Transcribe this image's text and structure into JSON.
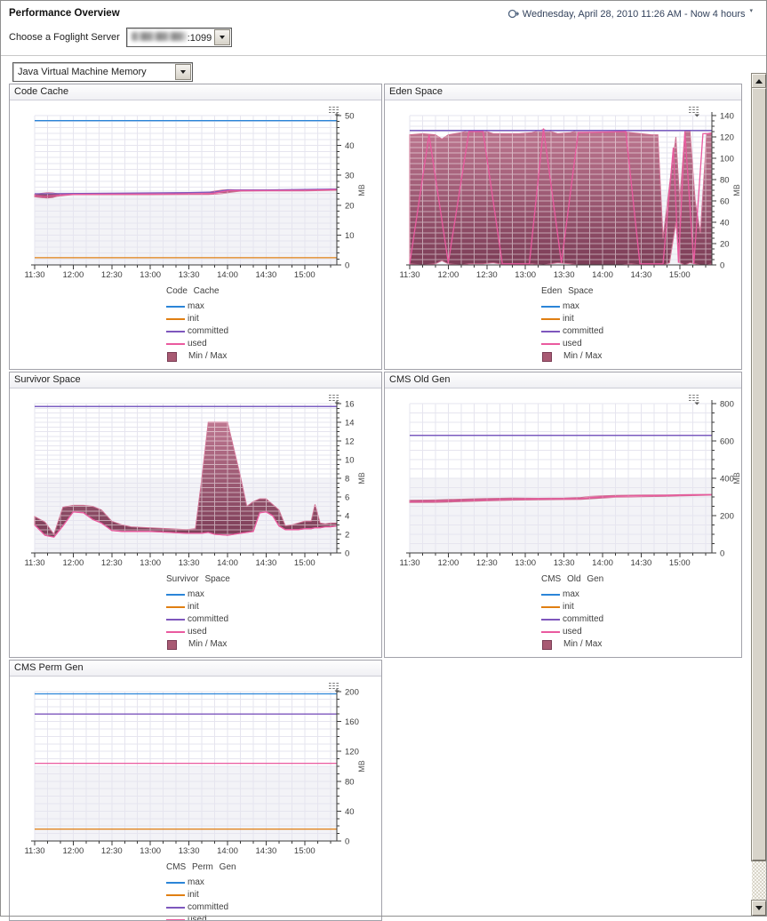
{
  "header": {
    "title": "Performance Overview",
    "timerange": "Wednesday, April 28, 2010 11:26 AM - Now 4 hours",
    "server_label": "Choose a Foglight Server",
    "server_value_visible": ":1099",
    "metric_selector": "Java Virtual Machine Memory"
  },
  "legend_labels": {
    "max": "max",
    "init": "init",
    "committed": "committed",
    "used": "used",
    "minmax": "Min / Max"
  },
  "colors": {
    "max": "#2b85d8",
    "init": "#e07f12",
    "committed": "#7e57bd",
    "used": "#ea5a9f",
    "band_top": "#bd7790",
    "band_bottom": "#7c3d57",
    "band_swatch": "#a85a73",
    "grid": "#e6e5ef",
    "axis": "#3a3a3a",
    "plot_lower_bg": "#f3f3f7"
  },
  "xticklabels": [
    "11:30",
    "12:00",
    "12:30",
    "13:00",
    "13:30",
    "14:00",
    "14:30",
    "15:00"
  ],
  "charts": [
    {
      "title": "Code Cache",
      "unit": "MB",
      "type": "line+band",
      "xlim": [
        0,
        235
      ],
      "xminor": 10,
      "xmajor": 30,
      "ylim": [
        0,
        50
      ],
      "ymajor": 10,
      "yminor": 2,
      "series": {
        "max": [
          [
            0,
            48.3
          ],
          [
            235,
            48.3
          ]
        ],
        "init": [
          [
            0,
            2.4
          ],
          [
            235,
            2.4
          ]
        ],
        "committed": [
          [
            0,
            23.8
          ],
          [
            60,
            24.0
          ],
          [
            120,
            24.2
          ],
          [
            140,
            24.4
          ],
          [
            150,
            25.1
          ],
          [
            180,
            25.1
          ],
          [
            235,
            25.4
          ]
        ],
        "used": [
          [
            0,
            23.2
          ],
          [
            8,
            22.9
          ],
          [
            14,
            23.1
          ],
          [
            20,
            23.4
          ],
          [
            30,
            23.6
          ],
          [
            60,
            23.7
          ],
          [
            90,
            23.7
          ],
          [
            120,
            23.8
          ],
          [
            138,
            23.9
          ],
          [
            146,
            24.5
          ],
          [
            152,
            24.9
          ],
          [
            180,
            24.9
          ],
          [
            210,
            25.0
          ],
          [
            235,
            25.2
          ]
        ]
      },
      "band": {
        "t": [
          0,
          6,
          10,
          14,
          18,
          24,
          30,
          60,
          90,
          120,
          135,
          140,
          146,
          152,
          160,
          180,
          210,
          235
        ],
        "max": [
          23.6,
          24.0,
          24.2,
          24.1,
          23.8,
          23.8,
          23.9,
          23.9,
          23.9,
          24.1,
          24.3,
          24.7,
          25.1,
          25.2,
          25.1,
          25.1,
          25.1,
          25.4
        ],
        "min": [
          22.8,
          22.5,
          22.4,
          22.6,
          23.0,
          23.3,
          23.5,
          23.5,
          23.5,
          23.6,
          23.6,
          23.7,
          23.9,
          24.3,
          24.7,
          24.8,
          24.8,
          25.0
        ]
      }
    },
    {
      "title": "Eden Space",
      "unit": "MB",
      "type": "line+band",
      "xlim": [
        0,
        235
      ],
      "xminor": 10,
      "xmajor": 30,
      "ylim": [
        0,
        140
      ],
      "ymajor": 20,
      "yminor": 5,
      "series": {
        "max": [
          [
            0,
            126
          ],
          [
            235,
            126
          ]
        ],
        "init": null,
        "committed": [
          [
            0,
            126
          ],
          [
            235,
            126
          ]
        ],
        "used": [
          [
            0,
            1
          ],
          [
            15,
            122
          ],
          [
            30,
            2
          ],
          [
            46,
            125
          ],
          [
            57,
            125
          ],
          [
            72,
            1
          ],
          [
            93,
            1
          ],
          [
            104,
            128
          ],
          [
            118,
            2
          ],
          [
            131,
            124
          ],
          [
            168,
            125
          ],
          [
            179,
            1
          ],
          [
            197,
            1
          ],
          [
            205,
            110
          ],
          [
            209,
            2
          ],
          [
            214,
            125
          ],
          [
            221,
            1
          ],
          [
            228,
            123
          ],
          [
            235,
            123
          ]
        ]
      },
      "band": {
        "t": [
          0,
          10,
          20,
          25,
          30,
          40,
          46,
          57,
          65,
          75,
          85,
          95,
          104,
          115,
          125,
          131,
          150,
          165,
          172,
          180,
          188,
          193,
          197,
          202,
          207,
          210,
          214,
          218,
          222,
          226,
          231,
          235
        ],
        "max": [
          122,
          123,
          122,
          118,
          122,
          124,
          126,
          126,
          123,
          123,
          123,
          124,
          127,
          123,
          124,
          126,
          126,
          125,
          124,
          123,
          122,
          122,
          25,
          75,
          120,
          60,
          125,
          125,
          60,
          30,
          123,
          124
        ],
        "min": [
          1,
          0,
          1,
          4,
          1,
          0,
          1,
          1,
          2,
          0,
          0,
          1,
          0,
          2,
          1,
          0,
          0,
          0,
          1,
          0,
          0,
          0,
          0,
          2,
          40,
          2,
          0,
          2,
          1,
          0,
          0,
          1
        ]
      }
    },
    {
      "title": "Survivor Space",
      "unit": "MB",
      "type": "line+band",
      "xlim": [
        0,
        235
      ],
      "xminor": 10,
      "xmajor": 30,
      "ylim": [
        0,
        16
      ],
      "ymajor": 2,
      "yminor": 0.5,
      "series": {
        "max": [
          [
            0,
            15.7
          ],
          [
            235,
            15.7
          ]
        ],
        "init": null,
        "committed": [
          [
            0,
            15.7
          ],
          [
            235,
            15.7
          ]
        ],
        "used": [
          [
            0,
            3.0
          ],
          [
            8,
            1.9
          ],
          [
            15,
            1.7
          ],
          [
            22,
            2.9
          ],
          [
            30,
            4.4
          ],
          [
            38,
            4.3
          ],
          [
            45,
            3.6
          ],
          [
            52,
            3.2
          ],
          [
            60,
            2.4
          ],
          [
            68,
            2.3
          ],
          [
            75,
            2.3
          ],
          [
            90,
            2.3
          ],
          [
            105,
            2.2
          ],
          [
            118,
            2.1
          ],
          [
            125,
            2.1
          ],
          [
            130,
            2.1
          ],
          [
            135,
            2.2
          ],
          [
            140,
            2.0
          ],
          [
            150,
            1.9
          ],
          [
            160,
            2.1
          ],
          [
            165,
            2.2
          ],
          [
            170,
            2.3
          ],
          [
            175,
            4.3
          ],
          [
            180,
            4.4
          ],
          [
            185,
            4.0
          ],
          [
            190,
            2.9
          ],
          [
            195,
            2.5
          ],
          [
            200,
            2.5
          ],
          [
            205,
            2.5
          ],
          [
            210,
            2.6
          ],
          [
            215,
            2.6
          ],
          [
            218,
            2.7
          ],
          [
            222,
            2.7
          ],
          [
            226,
            2.8
          ],
          [
            230,
            2.8
          ],
          [
            235,
            2.9
          ]
        ]
      },
      "band": {
        "t": [
          0,
          8,
          15,
          22,
          30,
          38,
          45,
          52,
          60,
          68,
          75,
          90,
          105,
          118,
          125,
          130,
          135,
          140,
          150,
          160,
          165,
          170,
          175,
          180,
          185,
          190,
          195,
          200,
          205,
          210,
          215,
          218,
          222,
          226,
          230,
          235
        ],
        "max": [
          3.9,
          3.3,
          2.0,
          4.9,
          5.1,
          5.1,
          5.0,
          4.6,
          3.4,
          3.0,
          2.8,
          2.7,
          2.6,
          2.5,
          2.6,
          8.0,
          14.0,
          14.0,
          14.0,
          8.2,
          5.0,
          5.5,
          5.8,
          5.8,
          5.2,
          4.6,
          2.9,
          3.0,
          3.2,
          3.4,
          3.4,
          5.2,
          3.2,
          3.1,
          3.2,
          3.2
        ],
        "min": [
          3.0,
          1.9,
          1.7,
          2.9,
          4.4,
          4.3,
          3.6,
          3.2,
          2.4,
          2.3,
          2.3,
          2.3,
          2.2,
          2.1,
          2.1,
          2.1,
          2.2,
          2.0,
          1.9,
          2.1,
          2.2,
          2.3,
          4.3,
          4.4,
          4.0,
          2.9,
          2.5,
          2.5,
          2.5,
          2.6,
          2.6,
          2.7,
          2.7,
          2.8,
          2.8,
          2.9
        ]
      }
    },
    {
      "title": "CMS Old Gen",
      "unit": "MB",
      "type": "line+band",
      "xlim": [
        0,
        235
      ],
      "xminor": 10,
      "xmajor": 30,
      "ylim": [
        0,
        800
      ],
      "ymajor": 200,
      "yminor": 50,
      "series": {
        "max": [
          [
            0,
            630
          ],
          [
            235,
            630
          ]
        ],
        "init": null,
        "committed": [
          [
            0,
            630
          ],
          [
            235,
            630
          ]
        ],
        "used": [
          [
            0,
            275
          ],
          [
            20,
            277
          ],
          [
            40,
            281
          ],
          [
            60,
            285
          ],
          [
            80,
            288
          ],
          [
            100,
            289
          ],
          [
            120,
            290
          ],
          [
            133,
            291
          ],
          [
            140,
            296
          ],
          [
            150,
            300
          ],
          [
            160,
            303
          ],
          [
            180,
            306
          ],
          [
            200,
            308
          ],
          [
            220,
            311
          ],
          [
            235,
            312
          ]
        ]
      },
      "band": {
        "t": [
          0,
          20,
          40,
          60,
          80,
          100,
          120,
          133,
          140,
          150,
          160,
          180,
          200,
          220,
          235
        ],
        "max": [
          282,
          284,
          288,
          292,
          294,
          293,
          294,
          297,
          303,
          306,
          308,
          310,
          311,
          313,
          314
        ],
        "min": [
          270,
          271,
          275,
          279,
          283,
          285,
          286,
          287,
          290,
          294,
          298,
          301,
          304,
          307,
          310
        ]
      }
    },
    {
      "title": "CMS Perm Gen",
      "unit": "MB",
      "type": "line+band",
      "xlim": [
        0,
        235
      ],
      "xminor": 10,
      "xmajor": 30,
      "ylim": [
        0,
        200
      ],
      "ymajor": 40,
      "yminor": 10,
      "series": {
        "max": [
          [
            0,
            197
          ],
          [
            235,
            197
          ]
        ],
        "init": [
          [
            0,
            16
          ],
          [
            235,
            16
          ]
        ],
        "committed": [
          [
            0,
            170
          ],
          [
            235,
            170
          ]
        ],
        "used": [
          [
            0,
            104
          ],
          [
            235,
            104
          ]
        ]
      },
      "band": null
    }
  ]
}
